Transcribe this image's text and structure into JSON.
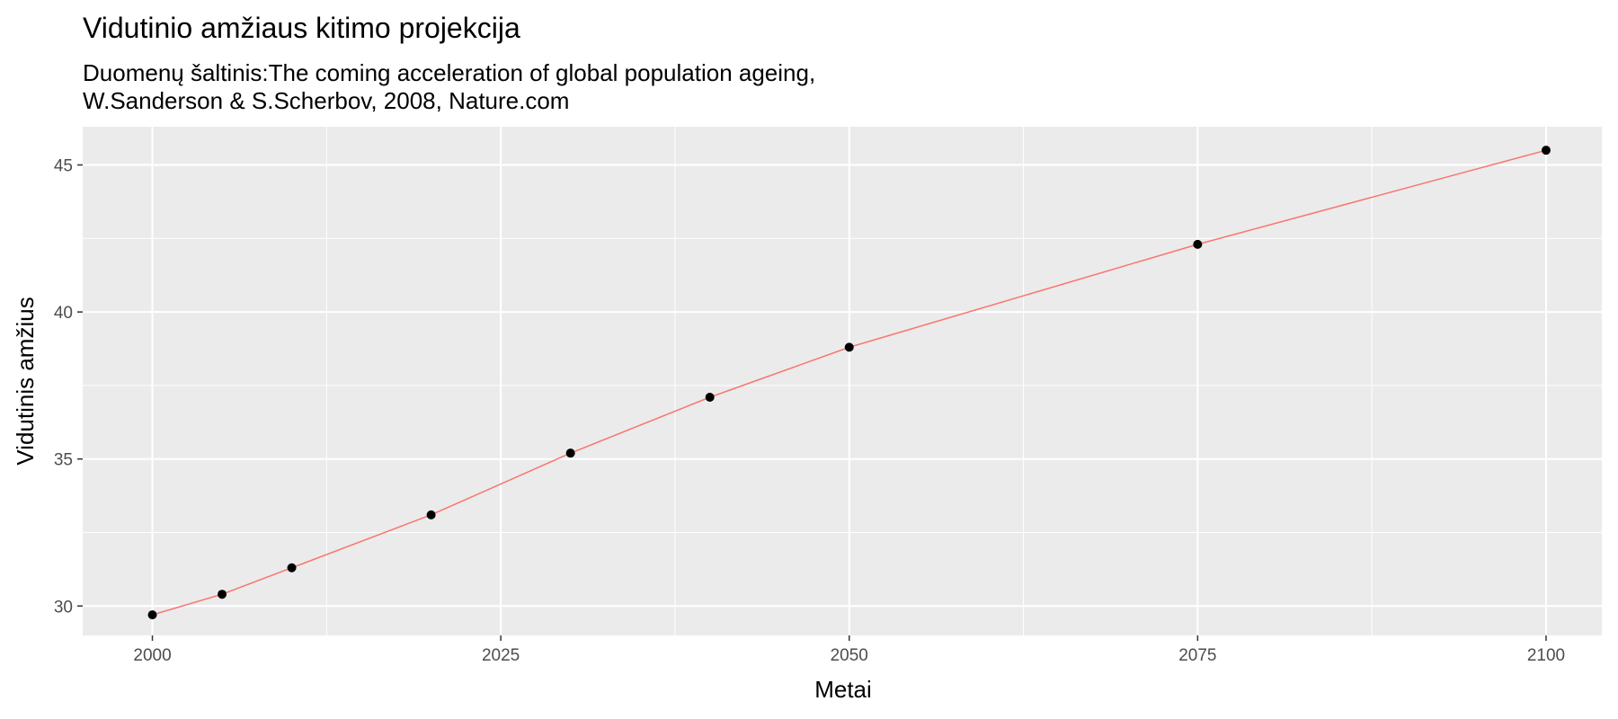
{
  "chart_data": {
    "type": "line",
    "title": "Vidutinio amžiaus kitimo projekcija",
    "subtitle_lines": [
      "Duomenų šaltinis:The coming acceleration of global population ageing,",
      "W.Sanderson & S.Scherbov, 2008, Nature.com"
    ],
    "xlabel": "Metai",
    "ylabel": "Vidutinis amžius",
    "x_ticks": [
      2000,
      2025,
      2050,
      2075,
      2100
    ],
    "y_ticks": [
      30,
      35,
      40,
      45
    ],
    "xlim": [
      1995,
      2104
    ],
    "ylim": [
      29.0,
      46.3
    ],
    "grid": true,
    "series": [
      {
        "x": [
          2000,
          2005,
          2010,
          2020,
          2030,
          2040,
          2050,
          2075,
          2100
        ],
        "y": [
          29.7,
          30.4,
          31.3,
          33.1,
          35.2,
          37.1,
          38.8,
          42.3,
          45.5
        ]
      }
    ],
    "line_color": "#f8766d",
    "point_color": "#000000",
    "panel_color": "#ebebeb",
    "grid_color": "#ffffff",
    "tick_color": "#333333"
  }
}
